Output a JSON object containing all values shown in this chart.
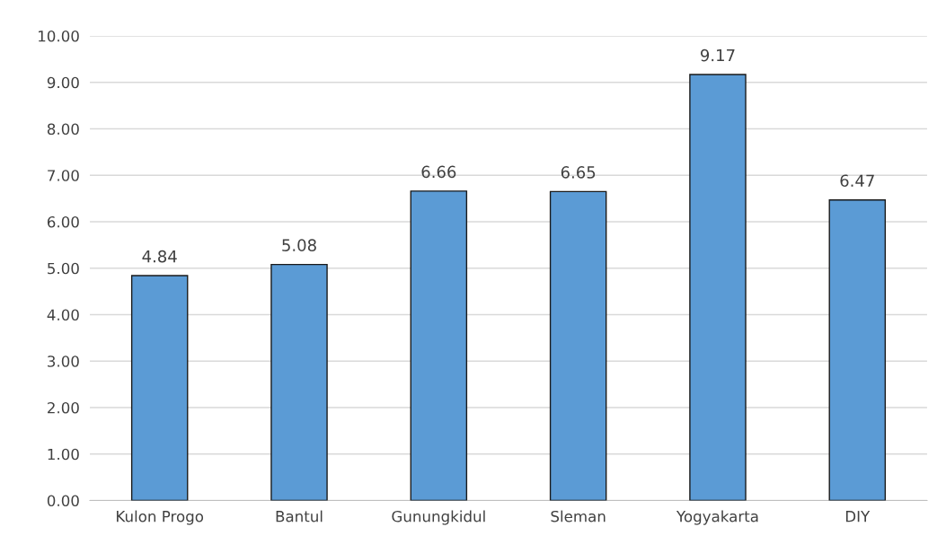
{
  "chart_data": {
    "type": "bar",
    "categories": [
      "Kulon Progo",
      "Bantul",
      "Gunungkidul",
      "Sleman",
      "Yogyakarta",
      "DIY"
    ],
    "values": [
      4.84,
      5.08,
      6.66,
      6.65,
      9.17,
      6.47
    ],
    "color": "#5b9bd5",
    "data_labels": true,
    "grid": "y",
    "ylim": [
      0,
      10
    ],
    "yticks": [
      {
        "value": 0,
        "label": "0.00"
      },
      {
        "value": 1,
        "label": "1.00"
      },
      {
        "value": 2,
        "label": "2.00"
      },
      {
        "value": 3,
        "label": "3.00"
      },
      {
        "value": 4,
        "label": "4.00"
      },
      {
        "value": 5,
        "label": "5.00"
      },
      {
        "value": 6,
        "label": "6.00"
      },
      {
        "value": 7,
        "label": "7.00"
      },
      {
        "value": 8,
        "label": "8.00"
      },
      {
        "value": 9,
        "label": "9.00"
      },
      {
        "value": 10,
        "label": "10.00"
      }
    ]
  }
}
